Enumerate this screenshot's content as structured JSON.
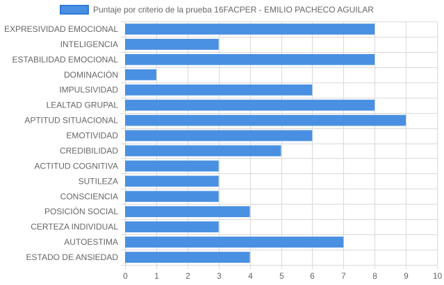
{
  "chart_data": {
    "type": "bar",
    "orientation": "horizontal",
    "categories": [
      "EXPRESIVIDAD EMOCIONAL",
      "INTELIGENCIA",
      "ESTABILIDAD EMOCIONAL",
      "DOMINACIÓN",
      "IMPULSIVIDAD",
      "LEALTAD GRUPAL",
      "APTITUD SITUACIONAL",
      "EMOTIVIDAD",
      "CREDIBILIDAD",
      "ACTITUD COGNITIVA",
      "SUTILEZA",
      "CONSCIENCIA",
      "POSICIÓN SOCIAL",
      "CERTEZA INDIVIDUAL",
      "AUTOESTIMA",
      "ESTADO DE ANSIEDAD"
    ],
    "series": [
      {
        "name": "Puntaje por criterio de la prueba 16FACPER - EMILIO PACHECO AGUILAR",
        "values": [
          8,
          3,
          8,
          1,
          6,
          8,
          9,
          6,
          5,
          3,
          3,
          3,
          4,
          3,
          7,
          4
        ],
        "color": "#4a90e2"
      }
    ],
    "xlim": [
      0,
      10
    ],
    "xticks": [
      "0",
      "1",
      "2",
      "3",
      "4",
      "5",
      "6",
      "7",
      "8",
      "9",
      "10"
    ],
    "grid": true,
    "legend_position": "top"
  }
}
